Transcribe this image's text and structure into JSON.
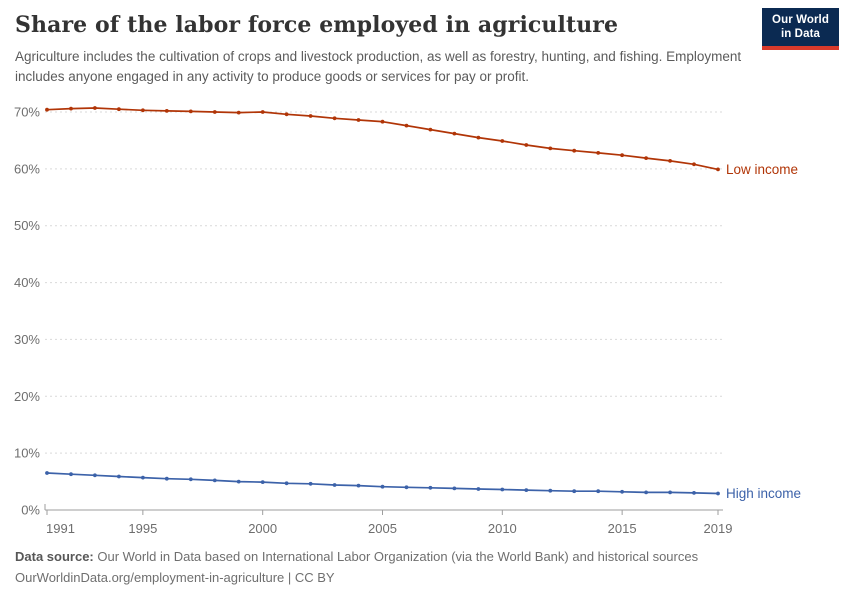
{
  "header": {
    "title": "Share of the labor force employed in agriculture",
    "subtitle": "Agriculture includes the cultivation of crops and livestock production, as well as forestry, hunting, and fishing. Employment includes anyone engaged in any activity to produce goods or services for pay or profit.",
    "logo": {
      "line1": "Our World",
      "line2": "in Data"
    }
  },
  "chart_data": {
    "type": "line",
    "title": "Share of the labor force employed in agriculture",
    "x": [
      1991,
      1992,
      1993,
      1994,
      1995,
      1996,
      1997,
      1998,
      1999,
      2000,
      2001,
      2002,
      2003,
      2004,
      2005,
      2006,
      2007,
      2008,
      2009,
      2010,
      2011,
      2012,
      2013,
      2014,
      2015,
      2016,
      2017,
      2018,
      2019
    ],
    "series": [
      {
        "name": "Low income",
        "color": "#b13507",
        "values": [
          70.4,
          70.6,
          70.7,
          70.5,
          70.3,
          70.2,
          70.1,
          70.0,
          69.9,
          70.0,
          69.6,
          69.3,
          68.9,
          68.6,
          68.3,
          67.6,
          66.9,
          66.2,
          65.5,
          64.9,
          64.2,
          63.6,
          63.2,
          62.8,
          62.4,
          61.9,
          61.4,
          60.8,
          59.9
        ]
      },
      {
        "name": "High income",
        "color": "#3c62a9",
        "values": [
          6.5,
          6.3,
          6.1,
          5.9,
          5.7,
          5.5,
          5.4,
          5.2,
          5.0,
          4.9,
          4.7,
          4.6,
          4.4,
          4.3,
          4.1,
          4.0,
          3.9,
          3.8,
          3.7,
          3.6,
          3.5,
          3.4,
          3.3,
          3.3,
          3.2,
          3.1,
          3.1,
          3.0,
          2.9
        ]
      }
    ],
    "ylim": [
      0,
      70
    ],
    "yticks": [
      0,
      10,
      20,
      30,
      40,
      50,
      60,
      70
    ],
    "ytick_labels": [
      "0%",
      "10%",
      "20%",
      "30%",
      "40%",
      "50%",
      "60%",
      "70%"
    ],
    "xticks": [
      1991,
      1995,
      2000,
      2005,
      2010,
      2015,
      2019
    ],
    "xtick_labels": [
      "1991",
      "1995",
      "2000",
      "2005",
      "2010",
      "2015",
      "2019"
    ],
    "grid": "horizontal-dashed",
    "legend_position": "line-end-labels",
    "grid_color": "#d9d9d9",
    "axis_color": "#9e9e9e"
  },
  "footer": {
    "source_label": "Data source:",
    "source_text": " Our World in Data based on International Labor Organization (via the World Bank) and historical sources",
    "note": "OurWorldinData.org/employment-in-agriculture | CC BY"
  }
}
